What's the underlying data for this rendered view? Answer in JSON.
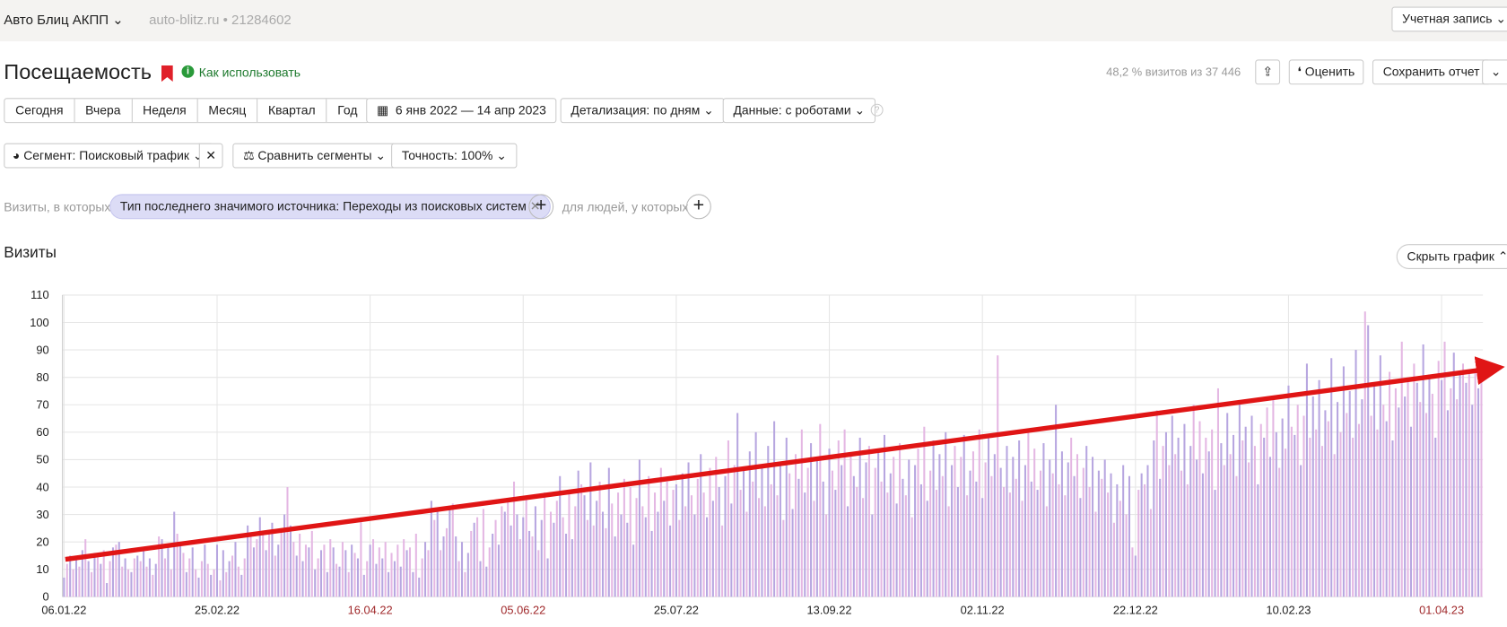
{
  "header": {
    "site": "Авто Блиц АКПП",
    "domain": "auto-blitz.ru",
    "counter": "21284602",
    "account": "Учетная запись"
  },
  "report": {
    "title": "Посещаемость",
    "howto": "Как использовать",
    "sample": "48,2 % визитов из 37 446",
    "rate": "Оценить",
    "save": "Сохранить отчет"
  },
  "periods": [
    "Сегодня",
    "Вчера",
    "Неделя",
    "Месяц",
    "Квартал",
    "Год"
  ],
  "date_range": "6 янв 2022 — 14 апр 2023",
  "detail": "Детализация: по дням",
  "robots": "Данные: с роботами",
  "segment": "Сегмент: Поисковый трафик",
  "compare": "Сравнить сегменты",
  "accuracy": "Точность: 100%",
  "filter": {
    "prefix": "Визиты, в которых",
    "chip": "Тип последнего значимого источника: Переходы из поисковых систем",
    "people": "для людей, у которых"
  },
  "hide_chart": "Скрыть график",
  "chart_data": {
    "type": "bar",
    "title": "Визиты",
    "colors": [
      "#b7a6e0",
      "#e4b7e3"
    ],
    "grid": true,
    "ylim": [
      0,
      110
    ],
    "yticks": [
      0,
      10,
      20,
      30,
      40,
      50,
      60,
      70,
      80,
      90,
      100,
      110
    ],
    "xlim": [
      0,
      464
    ],
    "xticks": [
      {
        "value": 0,
        "label": "06.01.22"
      },
      {
        "value": 50,
        "label": "25.02.22"
      },
      {
        "value": 100,
        "label": "16.04.22"
      },
      {
        "value": 150,
        "label": "05.06.22"
      },
      {
        "value": 200,
        "label": "25.07.22"
      },
      {
        "value": 250,
        "label": "13.09.22"
      },
      {
        "value": 300,
        "label": "02.11.22"
      },
      {
        "value": 350,
        "label": "22.12.22"
      },
      {
        "value": 400,
        "label": "10.02.23"
      },
      {
        "value": 450,
        "label": "01.04.23"
      }
    ],
    "xtick_colors": [
      "#222",
      "#222",
      "#a0292b",
      "#a0292b",
      "#222",
      "#222",
      "#222",
      "#222",
      "#222",
      "#a0292b"
    ],
    "values": [
      7,
      12,
      15,
      10,
      14,
      11,
      17,
      21,
      13,
      9,
      16,
      15,
      12,
      17,
      5,
      13,
      18,
      19,
      20,
      11,
      14,
      10,
      9,
      14,
      15,
      13,
      17,
      11,
      14,
      8,
      12,
      22,
      21,
      14,
      18,
      10,
      31,
      23,
      19,
      16,
      9,
      14,
      18,
      10,
      7,
      13,
      19,
      12,
      8,
      10,
      19,
      6,
      17,
      9,
      13,
      15,
      20,
      11,
      8,
      14,
      26,
      22,
      18,
      21,
      29,
      24,
      17,
      23,
      27,
      15,
      19,
      25,
      30,
      40,
      26,
      20,
      15,
      23,
      13,
      19,
      18,
      24,
      10,
      14,
      17,
      19,
      9,
      21,
      18,
      12,
      11,
      20,
      17,
      9,
      19,
      16,
      14,
      29,
      8,
      13,
      19,
      21,
      12,
      18,
      14,
      20,
      9,
      16,
      13,
      19,
      11,
      21,
      17,
      18,
      9,
      23,
      7,
      14,
      20,
      17,
      35,
      28,
      31,
      17,
      22,
      25,
      33,
      34,
      22,
      13,
      20,
      9,
      16,
      24,
      27,
      29,
      13,
      32,
      11,
      18,
      23,
      28,
      19,
      33,
      31,
      35,
      26,
      42,
      30,
      21,
      29,
      36,
      24,
      22,
      33,
      17,
      28,
      38,
      14,
      31,
      27,
      35,
      44,
      29,
      23,
      39,
      21,
      33,
      46,
      41,
      37,
      28,
      49,
      26,
      35,
      42,
      31,
      25,
      47,
      34,
      22,
      38,
      30,
      43,
      27,
      40,
      19,
      36,
      50,
      33,
      29,
      44,
      24,
      38,
      31,
      47,
      35,
      42,
      26,
      39,
      41,
      28,
      45,
      33,
      49,
      37,
      30,
      43,
      52,
      38,
      29,
      47,
      35,
      51,
      40,
      26,
      44,
      57,
      34,
      48,
      67,
      39,
      46,
      31,
      53,
      42,
      60,
      36,
      48,
      33,
      55,
      41,
      64,
      37,
      49,
      28,
      58,
      45,
      32,
      52,
      43,
      61,
      38,
      47,
      56,
      35,
      50,
      63,
      42,
      30,
      54,
      46,
      39,
      57,
      48,
      61,
      33,
      52,
      44,
      40,
      58,
      36,
      49,
      55,
      30,
      47,
      53,
      42,
      59,
      38,
      45,
      51,
      34,
      56,
      43,
      37,
      50,
      29,
      48,
      54,
      41,
      62,
      35,
      46,
      57,
      39,
      52,
      44,
      60,
      33,
      48,
      55,
      40,
      51,
      59,
      37,
      46,
      53,
      42,
      61,
      36,
      49,
      58,
      44,
      52,
      88,
      47,
      40,
      55,
      38,
      51,
      43,
      57,
      35,
      48,
      60,
      42,
      54,
      39,
      46,
      56,
      33,
      50,
      45,
      70,
      41,
      53,
      37,
      49,
      58,
      44,
      52,
      36,
      47,
      55,
      40,
      51,
      31,
      46,
      43,
      50,
      38,
      45,
      27,
      41,
      35,
      48,
      30,
      44,
      18,
      15,
      39,
      45,
      41,
      48,
      32,
      57,
      68,
      43,
      55,
      60,
      48,
      66,
      52,
      58,
      46,
      63,
      41,
      55,
      70,
      50,
      64,
      45,
      58,
      53,
      61,
      39,
      76,
      56,
      48,
      67,
      52,
      59,
      44,
      71,
      57,
      62,
      49,
      66,
      55,
      41,
      63,
      58,
      69,
      51,
      73,
      60,
      47,
      65,
      54,
      77,
      62,
      59,
      70,
      48,
      66,
      85,
      58,
      73,
      61,
      79,
      55,
      68,
      64,
      87,
      52,
      71,
      60,
      84,
      67,
      75,
      58,
      90,
      63,
      72,
      104,
      99,
      66,
      78,
      61,
      88,
      70,
      64,
      82,
      57,
      76,
      69,
      93,
      73,
      80,
      62,
      85,
      78,
      71,
      92,
      67,
      81,
      74,
      58,
      86,
      79,
      93,
      68,
      76,
      89,
      72,
      81,
      85,
      78,
      82,
      70,
      83,
      76,
      80
    ]
  }
}
